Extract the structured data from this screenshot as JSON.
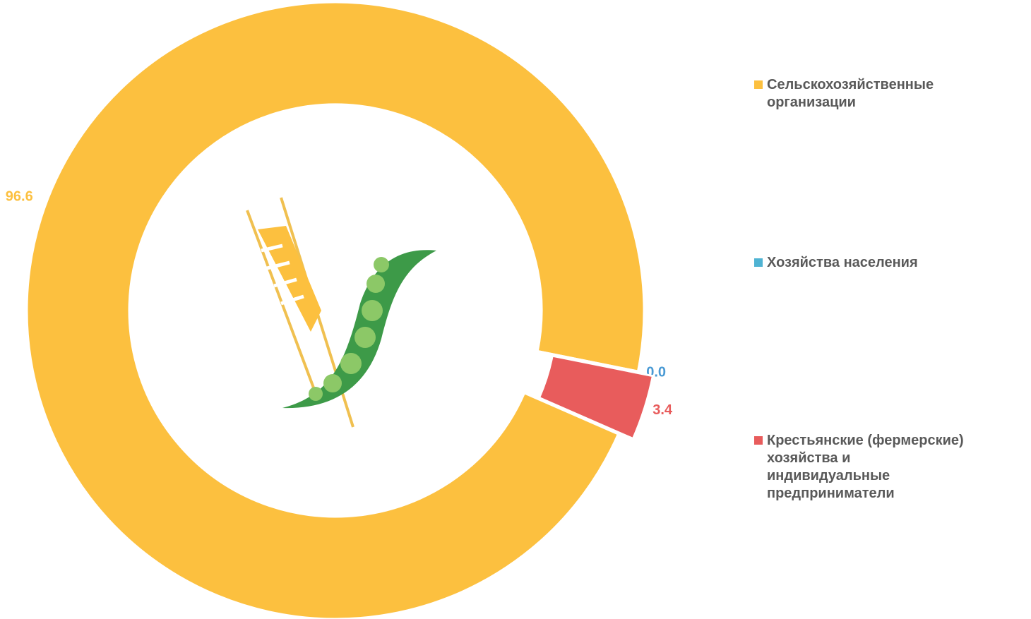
{
  "chart_data": {
    "type": "pie",
    "donut": true,
    "legend": "right",
    "categories": [
      "Сельскохозяйственные организации",
      "Хозяйства населения",
      "Крестьянские (фермерские) хозяйства и индивидуальные предприниматели"
    ],
    "values": [
      96.6,
      0.0,
      3.4
    ],
    "value_labels": [
      "96.6",
      "0.0",
      "3.4"
    ],
    "colors": [
      "#fcc03f",
      "#4fb3d3",
      "#e85c5c"
    ],
    "label_colors": [
      "#fcc03f",
      "#4a9ad4",
      "#e85c5c"
    ]
  }
}
